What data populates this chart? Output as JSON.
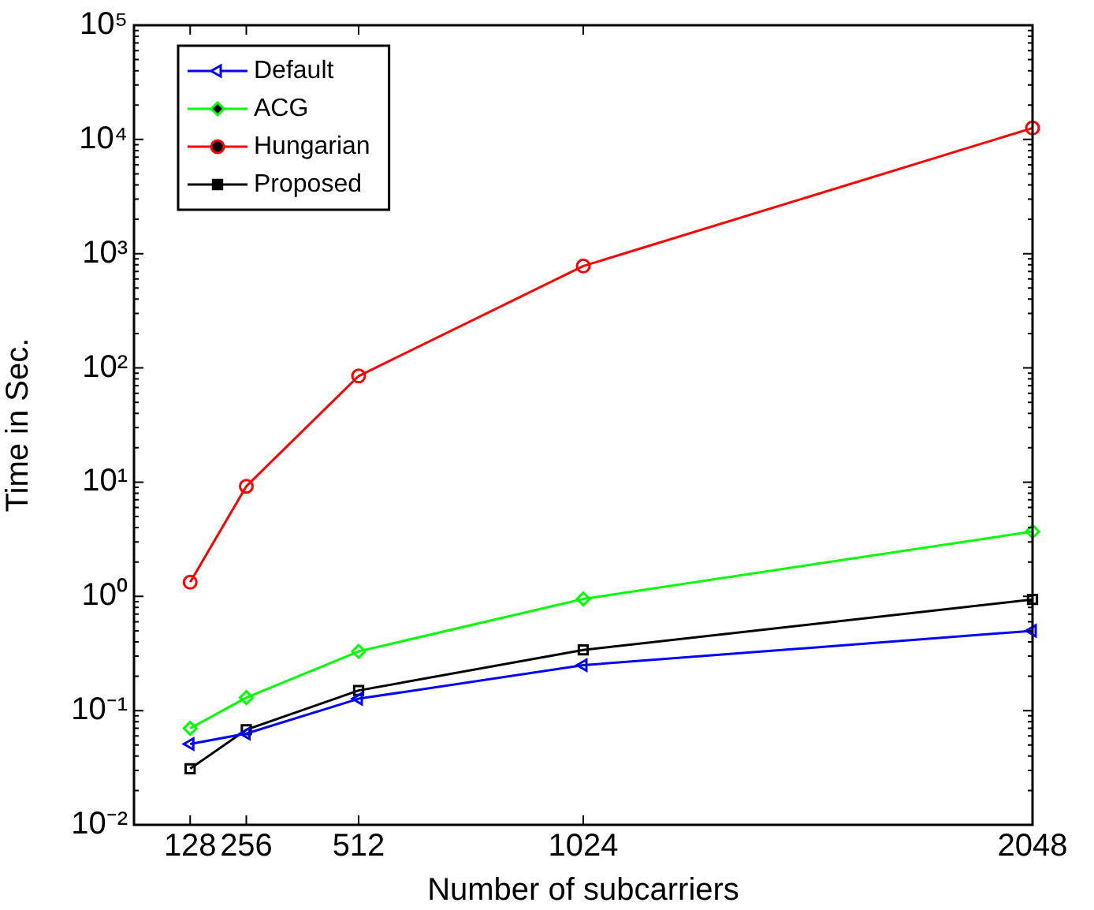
{
  "chart_data": {
    "type": "line",
    "xlabel": "Number of subcarriers",
    "ylabel": "Time in Sec.",
    "x": [
      128,
      256,
      512,
      1024,
      2048
    ],
    "series": [
      {
        "name": "Default",
        "color": "#0000ff",
        "marker": "triangle",
        "values": [
          0.051,
          0.063,
          0.127,
          0.25,
          0.5
        ]
      },
      {
        "name": "ACG",
        "color": "#00ff00",
        "marker": "diamond",
        "values": [
          0.07,
          0.13,
          0.33,
          0.95,
          3.7
        ]
      },
      {
        "name": "Hungarian",
        "color": "#ff0000",
        "marker": "circle",
        "values": [
          1.33,
          9.2,
          85,
          780,
          12600
        ]
      },
      {
        "name": "Proposed",
        "color": "#000000",
        "marker": "square",
        "values": [
          0.031,
          0.068,
          0.15,
          0.34,
          0.94
        ]
      }
    ],
    "log": "y",
    "xlim": [
      0,
      2048
    ],
    "xticks": [
      128,
      256,
      512,
      1024,
      2048
    ],
    "ylim": [
      0.01,
      100000
    ],
    "yticks": [
      {
        "value": 0.01,
        "label": "10⁻²"
      },
      {
        "value": 0.1,
        "label": "10⁻¹"
      },
      {
        "value": 1,
        "label": "10⁰"
      },
      {
        "value": 10,
        "label": "10¹"
      },
      {
        "value": 100,
        "label": "10²"
      },
      {
        "value": 1000,
        "label": "10³"
      },
      {
        "value": 10000,
        "label": "10⁴"
      },
      {
        "value": 100000,
        "label": "10⁵"
      }
    ],
    "grid": false,
    "legend": "top left",
    "line_style": "solid"
  }
}
